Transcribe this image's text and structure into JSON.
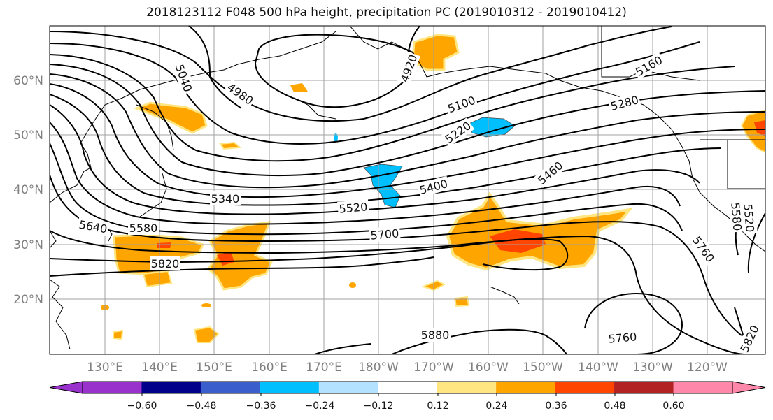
{
  "title": "2018123112 F048 500 hPa height, precipitation PC (2019010312 - 2019010412)",
  "lat_labels": [
    "60°N",
    "50°N",
    "40°N",
    "30°N",
    "20°N"
  ],
  "lon_labels": [
    "130°E",
    "140°E",
    "150°E",
    "160°E",
    "170°E",
    "180°W",
    "170°W",
    "160°W",
    "150°W",
    "140°W",
    "130°W",
    "120°W"
  ],
  "contour_labels": [
    "5040",
    "4980",
    "4920",
    "5160",
    "5100",
    "5280",
    "5220",
    "5340",
    "5400",
    "5520",
    "5460",
    "5640",
    "5580",
    "5700",
    "5820",
    "5880",
    "5760",
    "5760",
    "5820",
    "5580",
    "5520"
  ],
  "colorbar": {
    "tick_labels": [
      "−0.60",
      "−0.48",
      "−0.36",
      "−0.24",
      "−0.12",
      "0.12",
      "0.24",
      "0.36",
      "0.48",
      "0.60"
    ],
    "colors": [
      "#9932CC",
      "#00008B",
      "#3A5FCD",
      "#00BFFF",
      "#B2E2FF",
      "#FFFFFF",
      "#FFE680",
      "#FFA500",
      "#FF4500",
      "#B22222",
      "#FF88AA",
      "#FF88AA"
    ],
    "under_color": "#9932CC",
    "over_color": "#FF88AA"
  },
  "precip_colors": {
    "light_pos": "#FFE680",
    "mid_pos": "#FFA500",
    "high_pos": "#FF4500",
    "mid_neg": "#00BFFF"
  }
}
